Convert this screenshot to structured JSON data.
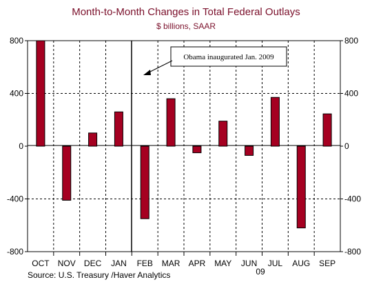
{
  "chart_data": {
    "type": "bar",
    "title": "Month-to-Month Changes in Total Federal Outlays",
    "subtitle": "$ billions, SAAR",
    "categories": [
      "OCT",
      "NOV",
      "DEC",
      "JAN",
      "FEB",
      "MAR",
      "APR",
      "MAY",
      "JUN",
      "JUL",
      "AUG",
      "SEP"
    ],
    "year_label": "09",
    "values": [
      800,
      -410,
      100,
      260,
      -550,
      360,
      -50,
      190,
      -70,
      370,
      -620,
      245
    ],
    "ylim": [
      -800,
      800
    ],
    "yticks": [
      "800",
      "400",
      "0",
      "-400",
      "-800"
    ],
    "ytick_values": [
      800,
      400,
      0,
      -400,
      -800
    ],
    "grid": true,
    "bar_color": "#a50021",
    "annotation": "Obama inaugurated Jan. 2009",
    "source": "Source:  U.S. Treasury /Haver Analytics",
    "xlabel": "",
    "ylabel": ""
  }
}
